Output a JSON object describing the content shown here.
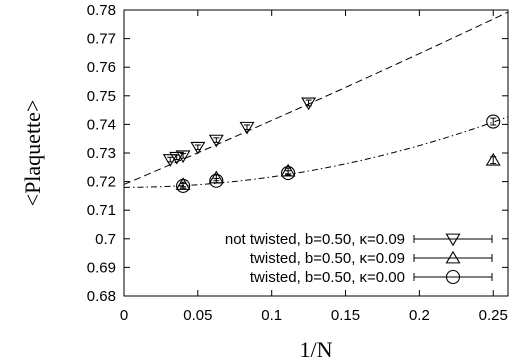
{
  "chart_data": {
    "type": "scatter",
    "xlabel": "1/N",
    "ylabel": "<Plaquette>",
    "xlim": [
      0,
      0.26
    ],
    "ylim": [
      0.68,
      0.78
    ],
    "x_ticks": [
      "0",
      "0.05",
      "0.1",
      "0.15",
      "0.2",
      "0.25"
    ],
    "x_tick_values": [
      0,
      0.05,
      0.1,
      0.15,
      0.2,
      0.25
    ],
    "y_ticks": [
      "0.68",
      "0.69",
      "0.7",
      "0.71",
      "0.72",
      "0.73",
      "0.74",
      "0.75",
      "0.76",
      "0.77",
      "0.78"
    ],
    "y_tick_values": [
      0.68,
      0.69,
      0.7,
      0.71,
      0.72,
      0.73,
      0.74,
      0.75,
      0.76,
      0.77,
      0.78
    ],
    "grid": false,
    "legend_position": "bottom-right",
    "series": [
      {
        "name": "not twisted, b=0.50, κ=0.09",
        "marker": "triangle-down",
        "points": [
          {
            "x": 0.0313,
            "y": 0.7277,
            "err": 0.0008
          },
          {
            "x": 0.0357,
            "y": 0.7285,
            "err": 0.0008
          },
          {
            "x": 0.04,
            "y": 0.729,
            "err": 0.0008
          },
          {
            "x": 0.05,
            "y": 0.732,
            "err": 0.0008
          },
          {
            "x": 0.0625,
            "y": 0.7345,
            "err": 0.0008
          },
          {
            "x": 0.0833,
            "y": 0.739,
            "err": 0.0008
          },
          {
            "x": 0.125,
            "y": 0.7475,
            "err": 0.001
          }
        ]
      },
      {
        "name": "twisted, b=0.50, κ=0.09",
        "marker": "triangle-up",
        "points": [
          {
            "x": 0.04,
            "y": 0.719,
            "err": 0.0008
          },
          {
            "x": 0.0625,
            "y": 0.7213,
            "err": 0.001
          },
          {
            "x": 0.1111,
            "y": 0.7237,
            "err": 0.001
          },
          {
            "x": 0.25,
            "y": 0.7275,
            "err": 0.0012
          }
        ]
      },
      {
        "name": "twisted, b=0.50, κ=0.00",
        "marker": "circle",
        "points": [
          {
            "x": 0.04,
            "y": 0.7185,
            "err": 0.0008
          },
          {
            "x": 0.0625,
            "y": 0.7203,
            "err": 0.0008
          },
          {
            "x": 0.1111,
            "y": 0.723,
            "err": 0.0008
          },
          {
            "x": 0.25,
            "y": 0.741,
            "err": 0.0012
          }
        ]
      }
    ],
    "fits": [
      {
        "style": "dashed",
        "form": "a+b*x+c*x^2",
        "a": 0.719,
        "b": 0.2188,
        "c": 0.05
      },
      {
        "style": "dash-dot",
        "form": "a+b*x^2",
        "a": 0.718,
        "b": 0.365
      }
    ]
  }
}
